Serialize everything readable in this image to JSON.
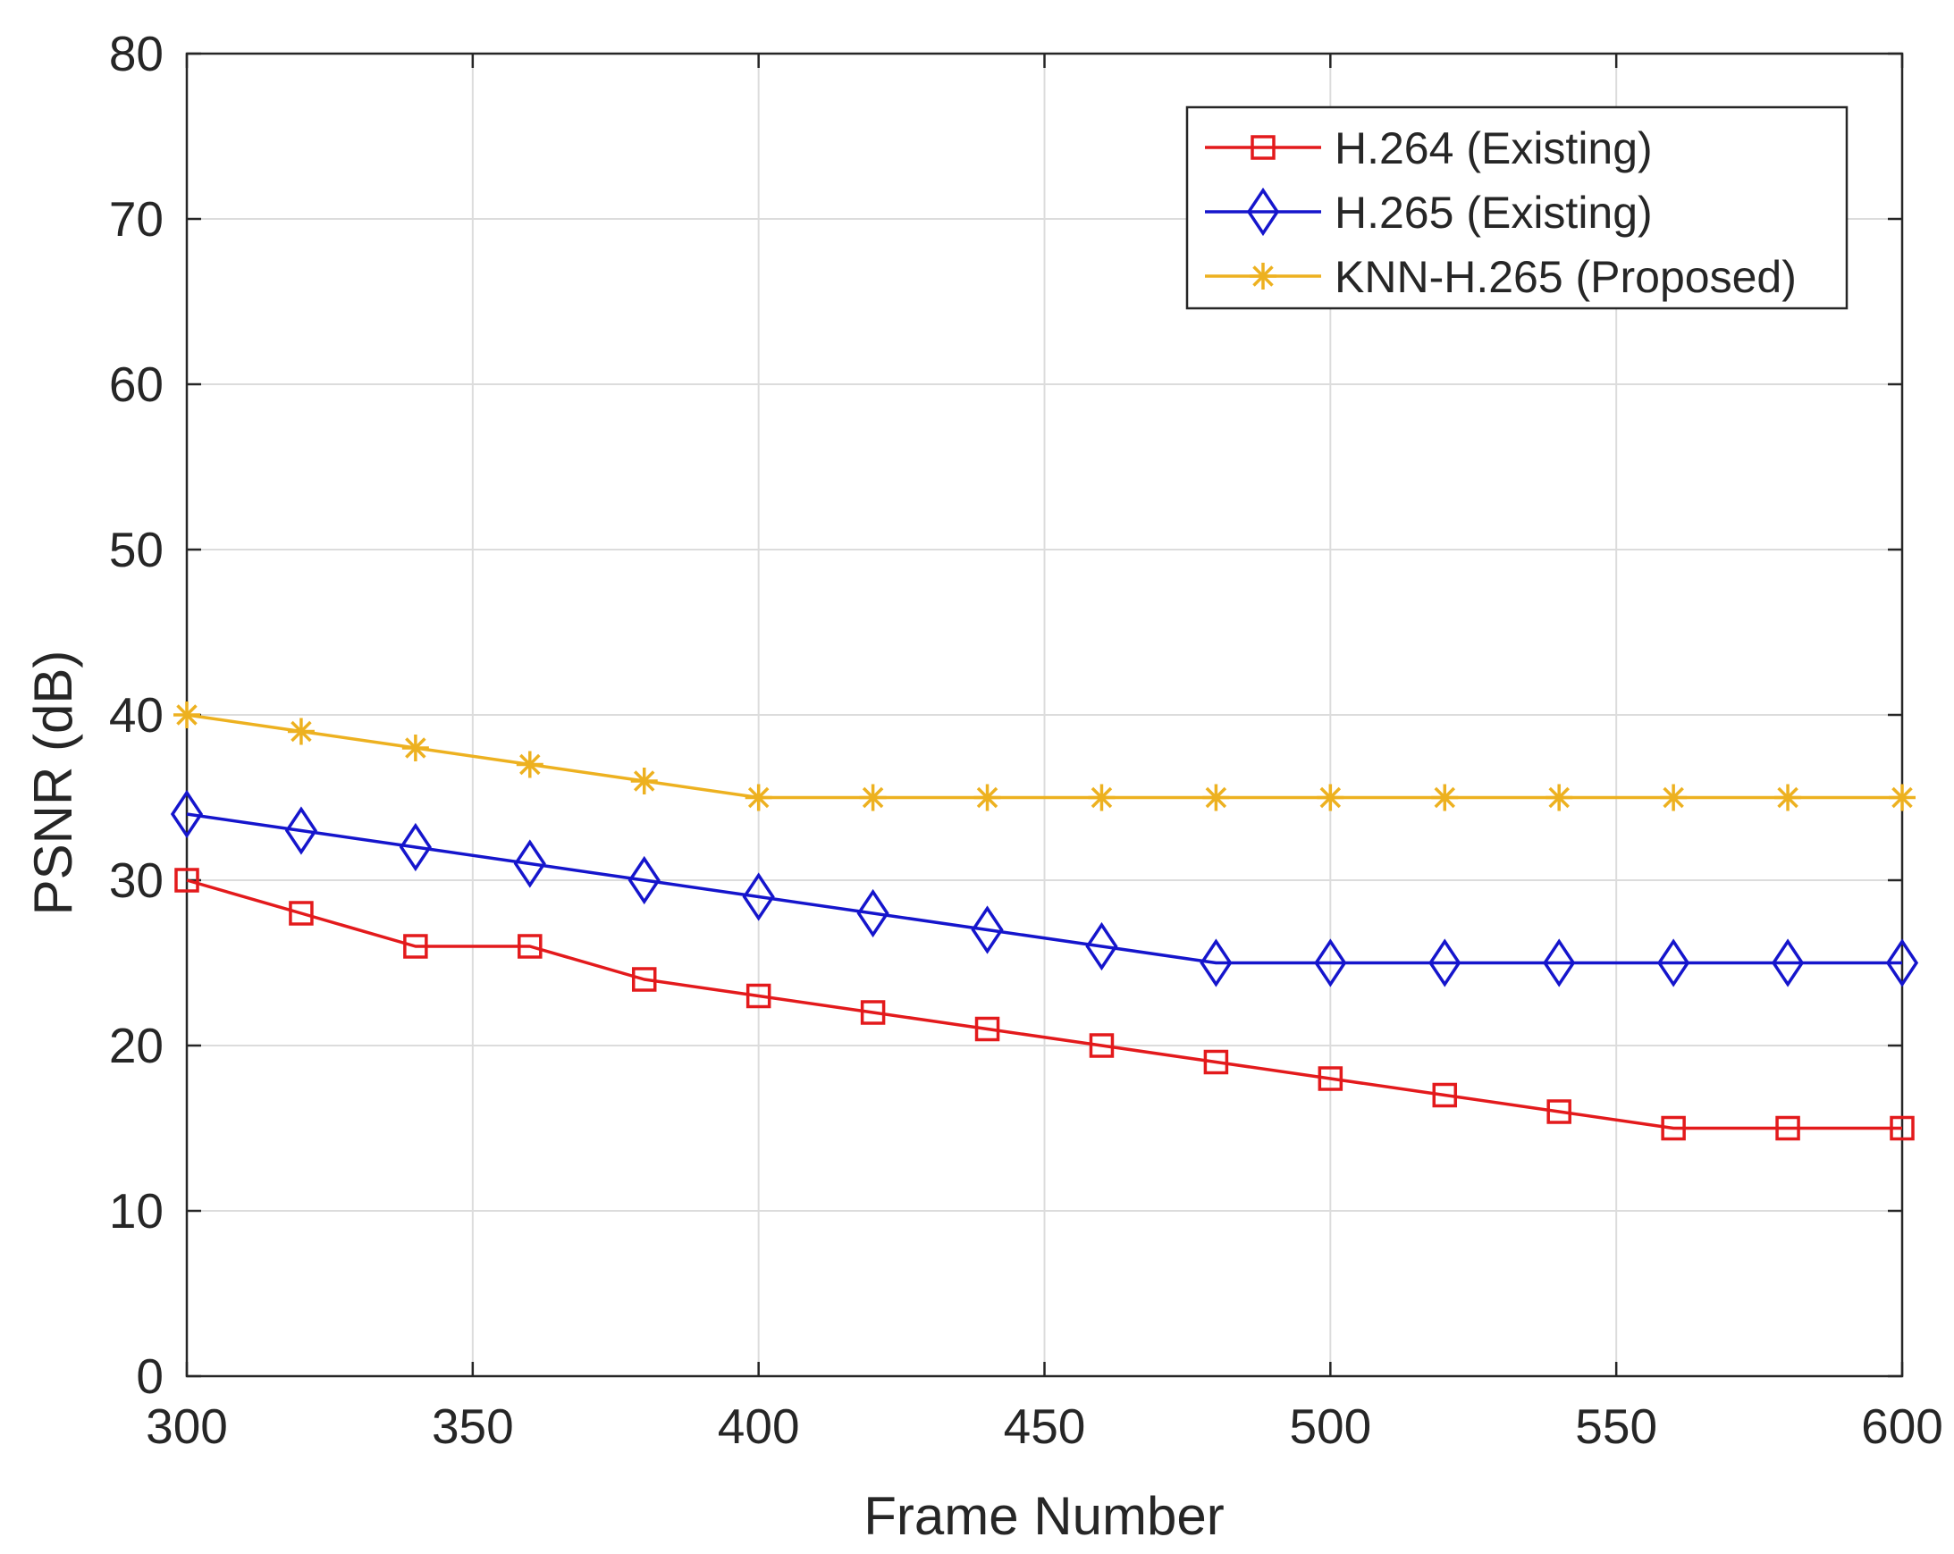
{
  "chart_data": {
    "type": "line",
    "title": "",
    "xlabel": "Frame Number",
    "ylabel": "PSNR (dB)",
    "xlim": [
      300,
      600
    ],
    "ylim": [
      0,
      80
    ],
    "xticks": [
      300,
      350,
      400,
      450,
      500,
      550,
      600
    ],
    "yticks": [
      0,
      10,
      20,
      30,
      40,
      50,
      60,
      70,
      80
    ],
    "grid": true,
    "legend_position": "top-right",
    "x": [
      300,
      320,
      340,
      360,
      380,
      400,
      420,
      440,
      460,
      480,
      500,
      520,
      540,
      560,
      580,
      600
    ],
    "series": [
      {
        "name": "H.264 (Existing)",
        "color": "#e31a1c",
        "marker": "square",
        "values": [
          30,
          28,
          26,
          26,
          24,
          23,
          22,
          21,
          20,
          19,
          18,
          17,
          16,
          15,
          15,
          15
        ]
      },
      {
        "name": "H.265 (Existing)",
        "color": "#1515cc",
        "marker": "diamond",
        "values": [
          34,
          33,
          32,
          31,
          30,
          29,
          28,
          27,
          26,
          25,
          25,
          25,
          25,
          25,
          25,
          25
        ]
      },
      {
        "name": "KNN-H.265 (Proposed)",
        "color": "#edb120",
        "marker": "asterisk",
        "values": [
          40,
          39,
          38,
          37,
          36,
          35,
          35,
          35,
          35,
          35,
          35,
          35,
          35,
          35,
          35,
          35
        ]
      }
    ]
  }
}
